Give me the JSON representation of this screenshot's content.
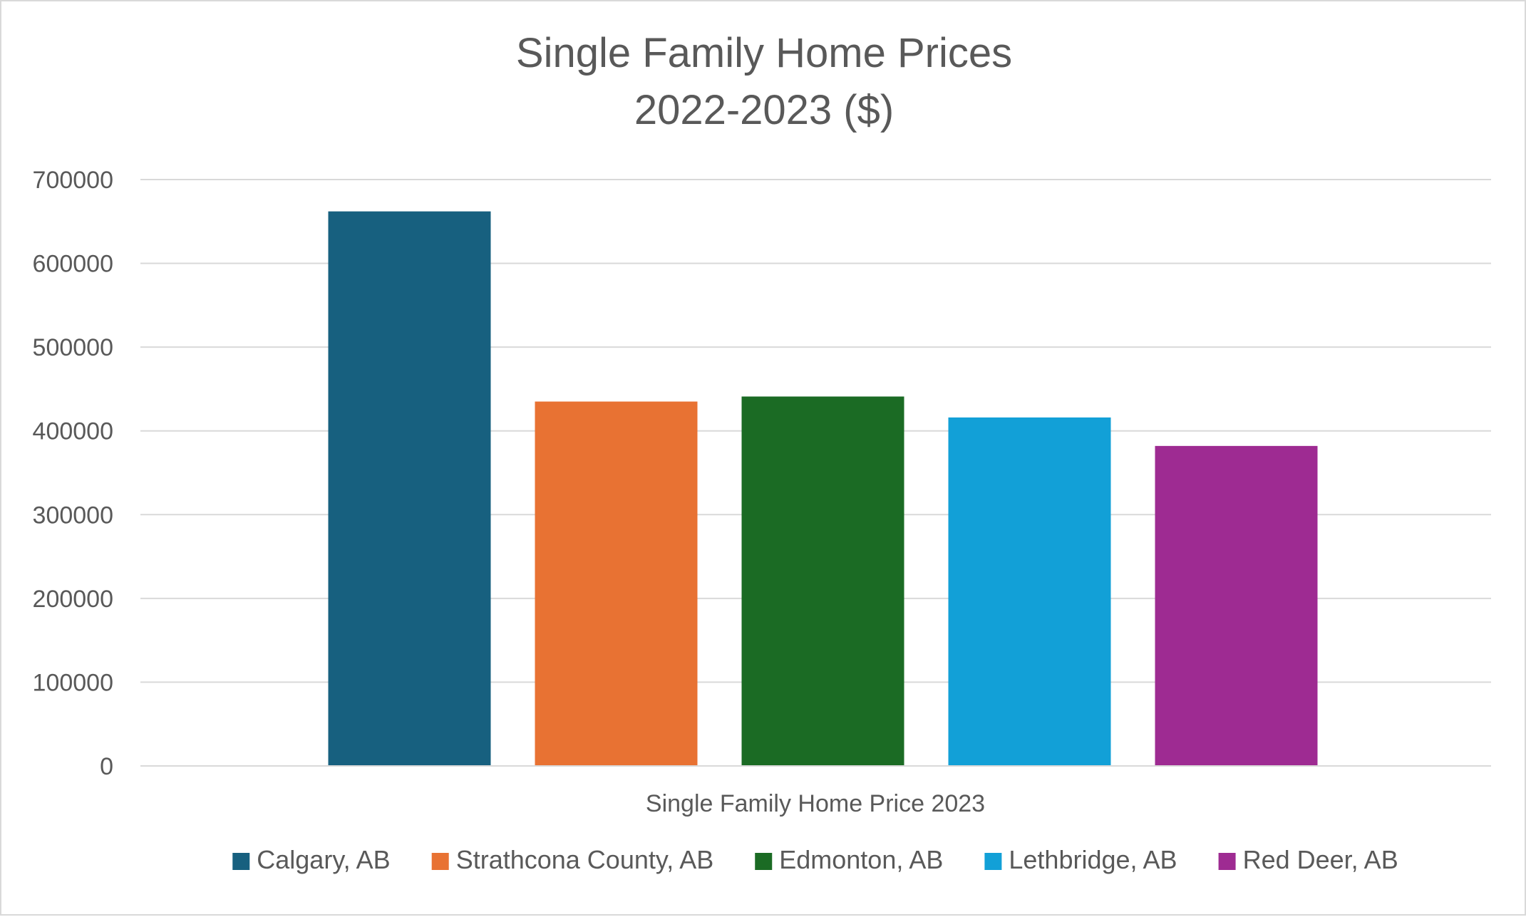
{
  "chart_data": {
    "type": "bar",
    "title": "Single Family Home Prices",
    "subtitle": "2022-2023 ($)",
    "categories": [
      "Single Family Home Price 2023"
    ],
    "xlabel": "",
    "ylabel": "",
    "ylim": [
      0,
      700000
    ],
    "yticks": [
      "0",
      "100000",
      "200000",
      "300000",
      "400000",
      "500000",
      "600000",
      "700000"
    ],
    "grid": true,
    "legend_position": "bottom",
    "series": [
      {
        "name": "Calgary, AB",
        "values": [
          662000
        ],
        "color": "#17607f"
      },
      {
        "name": "Strathcona County, AB",
        "values": [
          435000
        ],
        "color": "#e87233"
      },
      {
        "name": "Edmonton, AB",
        "values": [
          441000
        ],
        "color": "#1b6b24"
      },
      {
        "name": "Lethbridge, AB",
        "values": [
          416000
        ],
        "color": "#12a0d7"
      },
      {
        "name": "Red Deer, AB",
        "values": [
          382000
        ],
        "color": "#9e2b92"
      }
    ]
  }
}
